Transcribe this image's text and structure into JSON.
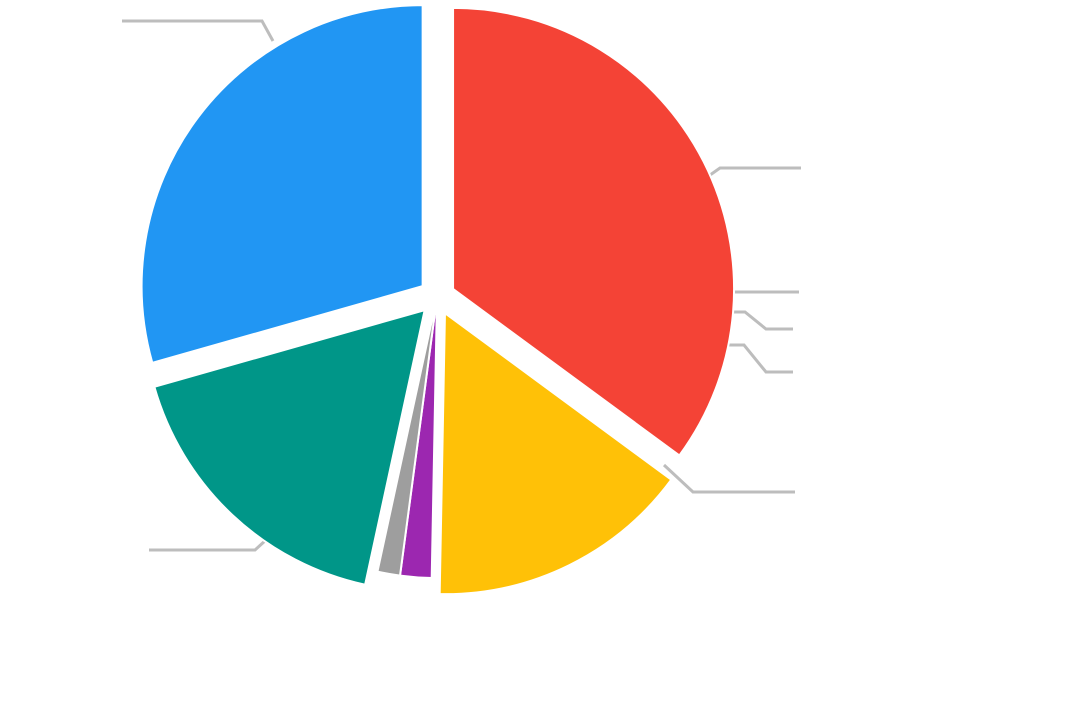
{
  "chart_data": {
    "type": "pie",
    "title": "",
    "slices": [
      {
        "value": 35.1,
        "color": "#F44336",
        "exploded": true
      },
      {
        "value": 15.2,
        "color": "#FFC107",
        "exploded": true
      },
      {
        "value": 1.8,
        "color": "#9C27B0",
        "exploded": false
      },
      {
        "value": 1.3,
        "color": "#9E9E9E",
        "exploded": false
      },
      {
        "value": 17.2,
        "color": "#009688",
        "exploded": true
      },
      {
        "value": 29.4,
        "color": "#2196F3",
        "exploded": true
      }
    ],
    "start_angle_deg": 0,
    "direction": "clockwise",
    "legend": "none",
    "leader_line_color": "#BDBDBD"
  }
}
